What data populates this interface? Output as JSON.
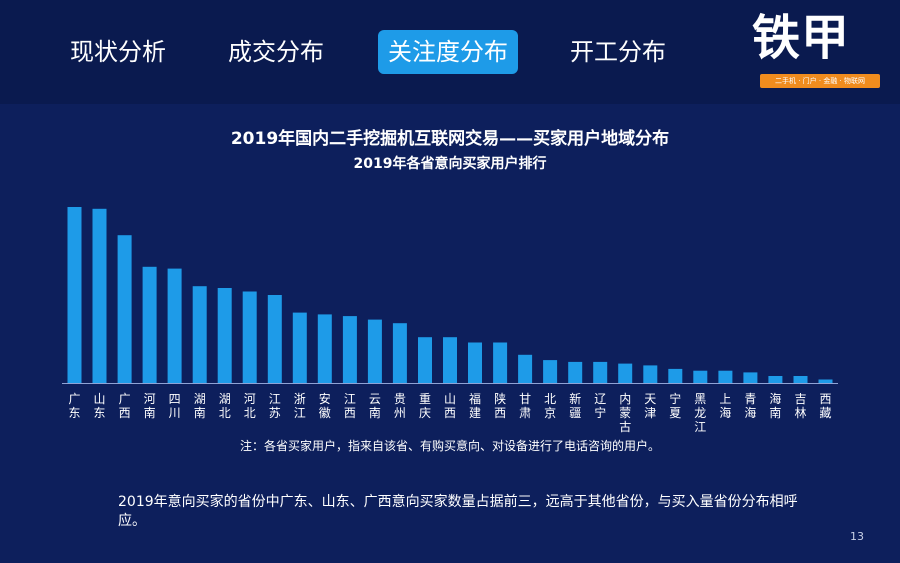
{
  "nav": {
    "tabs": [
      {
        "label": "现状分析",
        "active": false
      },
      {
        "label": "成交分布",
        "active": false
      },
      {
        "label": "关注度分布",
        "active": true
      },
      {
        "label": "开工分布",
        "active": false
      }
    ]
  },
  "logo": {
    "text": "铁甲",
    "tagline": "二手机 · 门户 · 金融 · 物联网"
  },
  "chart_data": {
    "type": "bar",
    "title": "2019年国内二手挖掘机互联网交易——买家用户地域分布",
    "subtitle": "2019年各省意向买家用户排行",
    "categories": [
      "广东",
      "山东",
      "广西",
      "河南",
      "四川",
      "湖南",
      "湖北",
      "河北",
      "江苏",
      "浙江",
      "安徽",
      "江西",
      "云南",
      "贵州",
      "重庆",
      "山西",
      "福建",
      "陕西",
      "甘肃",
      "北京",
      "新疆",
      "辽宁",
      "内蒙古",
      "天津",
      "宁夏",
      "黑龙江",
      "上海",
      "青海",
      "海南",
      "吉林",
      "西藏"
    ],
    "values": [
      100,
      99,
      84,
      66,
      65,
      55,
      54,
      52,
      50,
      40,
      39,
      38,
      36,
      34,
      26,
      26,
      23,
      23,
      16,
      13,
      12,
      12,
      11,
      10,
      8,
      7,
      7,
      6,
      4,
      4,
      2
    ],
    "ylim": [
      0,
      100
    ],
    "grid": false,
    "legend": "none",
    "bar_color": "#1e9be8"
  },
  "note": "注：各省买家用户，指来自该省、有购买意向、对设备进行了电话咨询的用户。",
  "summary": "2019年意向买家的省份中广东、山东、广西意向买家数量占据前三，远高于其他省份，与买入量省份分布相呼应。",
  "page_number": "13"
}
